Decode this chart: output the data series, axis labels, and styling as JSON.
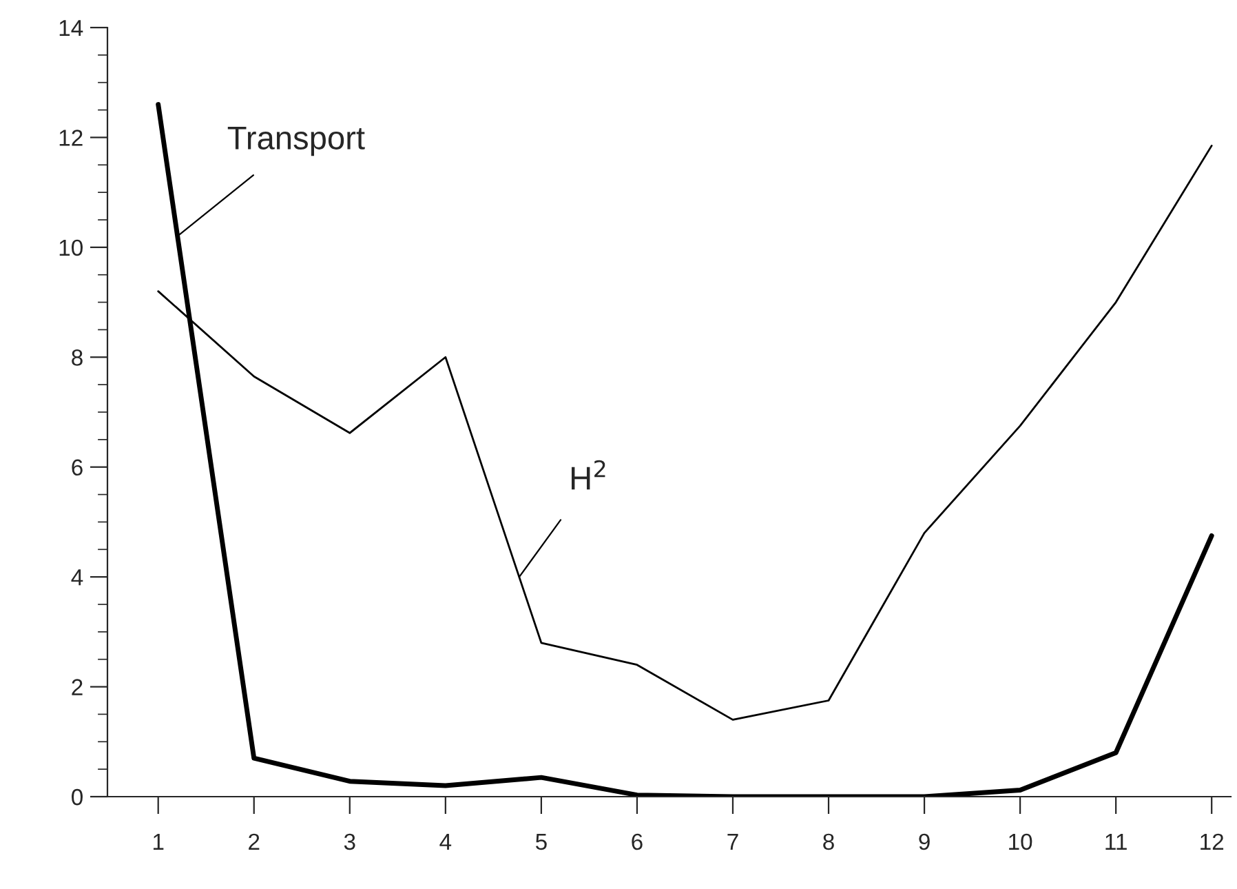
{
  "chart_data": {
    "type": "line",
    "x": [
      1,
      2,
      3,
      4,
      5,
      6,
      7,
      8,
      9,
      10,
      11,
      12
    ],
    "series": [
      {
        "color": "#000000",
        "values": [
          12.6,
          0.7,
          0.28,
          0.2,
          0.35,
          0.03,
          0,
          0,
          0,
          0.12,
          0.8,
          4.75
        ]
      },
      {
        "color": "#000000",
        "values": [
          9.2,
          7.65,
          6.62,
          8.0,
          2.8,
          2.4,
          1.4,
          1.75,
          4.8,
          6.75,
          9.0,
          11.85
        ]
      }
    ],
    "annotations": [
      {
        "text": "Transport",
        "x": 1.2,
        "y": 10.2
      },
      {
        "text": "H$^{2}$",
        "x": 4.77,
        "y": 4.0
      }
    ],
    "xlim": [
      0.47,
      12.2
    ],
    "ylim": [
      0,
      14
    ],
    "xticks": [
      1,
      2,
      3,
      4,
      5,
      6,
      7,
      8,
      9,
      10,
      11,
      12
    ],
    "yticks": [
      0,
      2,
      4,
      6,
      8,
      10,
      12,
      14
    ],
    "grid": false,
    "legend": false,
    "marker": "none",
    "line_style": "solid"
  }
}
